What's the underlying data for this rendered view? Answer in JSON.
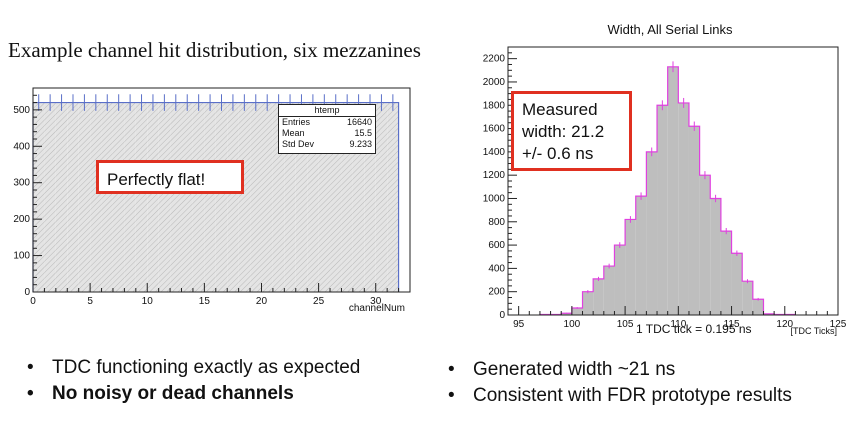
{
  "left_title": "Example channel hit distribution, six mezzanines",
  "right_title": "Width, All Serial Links",
  "chart_data": [
    {
      "type": "bar",
      "x": [
        0,
        1,
        2,
        3,
        4,
        5,
        6,
        7,
        8,
        9,
        10,
        11,
        12,
        13,
        14,
        15,
        16,
        17,
        18,
        19,
        20,
        21,
        22,
        23,
        24,
        25,
        26,
        27,
        28,
        29,
        30,
        31
      ],
      "values": [
        520,
        520,
        520,
        520,
        520,
        520,
        520,
        520,
        520,
        520,
        520,
        520,
        520,
        520,
        520,
        520,
        520,
        520,
        520,
        520,
        520,
        520,
        520,
        520,
        520,
        520,
        520,
        520,
        520,
        520,
        520,
        520
      ],
      "xlabel": "channelNum",
      "ylabel": "",
      "xlim": [
        0,
        33
      ],
      "ylim": [
        0,
        560
      ],
      "xticks": [
        "0",
        "5",
        "10",
        "15",
        "20",
        "25",
        "30"
      ],
      "yticks": [
        "0",
        "100",
        "200",
        "300",
        "400",
        "500"
      ],
      "fill": "#dcdcdc",
      "line_color": "#5a6fc8",
      "stats": {
        "name": "htemp",
        "rows": [
          {
            "label": "Entries",
            "value": "16640"
          },
          {
            "label": "Mean",
            "value": "15.5"
          },
          {
            "label": "Std Dev",
            "value": "9.233"
          }
        ]
      },
      "annotation": "Perfectly flat!"
    },
    {
      "type": "bar",
      "x": [
        97,
        98,
        99,
        100,
        101,
        102,
        103,
        104,
        105,
        106,
        107,
        108,
        109,
        110,
        111,
        112,
        113,
        114,
        115,
        116,
        117,
        118,
        119,
        120
      ],
      "values": [
        5,
        5,
        15,
        60,
        200,
        310,
        420,
        600,
        820,
        1020,
        1400,
        1800,
        2130,
        1820,
        1620,
        1200,
        1000,
        720,
        530,
        290,
        135,
        10,
        5,
        5
      ],
      "xlabel": "[TDC Ticks]",
      "ylabel": "",
      "xlim": [
        94,
        125
      ],
      "ylim": [
        0,
        2300
      ],
      "xticks": [
        "95",
        "100",
        "105",
        "110",
        "115",
        "120",
        "125"
      ],
      "yticks": [
        "0",
        "200",
        "400",
        "600",
        "800",
        "1000",
        "1200",
        "1400",
        "1600",
        "1800",
        "2000",
        "2200"
      ],
      "fill": "#bebebe",
      "line_color": "#e040e0",
      "annotation": [
        "Measured",
        "width: 21.2",
        "+/- 0.6 ns"
      ],
      "tick_note": "1 TDC tick = 0.195 ns"
    }
  ],
  "bullets_left": [
    {
      "text": "TDC functioning exactly as expected",
      "bold": false
    },
    {
      "text": "No noisy or dead channels",
      "bold": true
    }
  ],
  "bullets_right": [
    {
      "text": "Generated width ~21 ns"
    },
    {
      "text": "Consistent with FDR prototype results"
    }
  ],
  "colors": {
    "callout_border": "#e03020",
    "frame": "#222222"
  }
}
